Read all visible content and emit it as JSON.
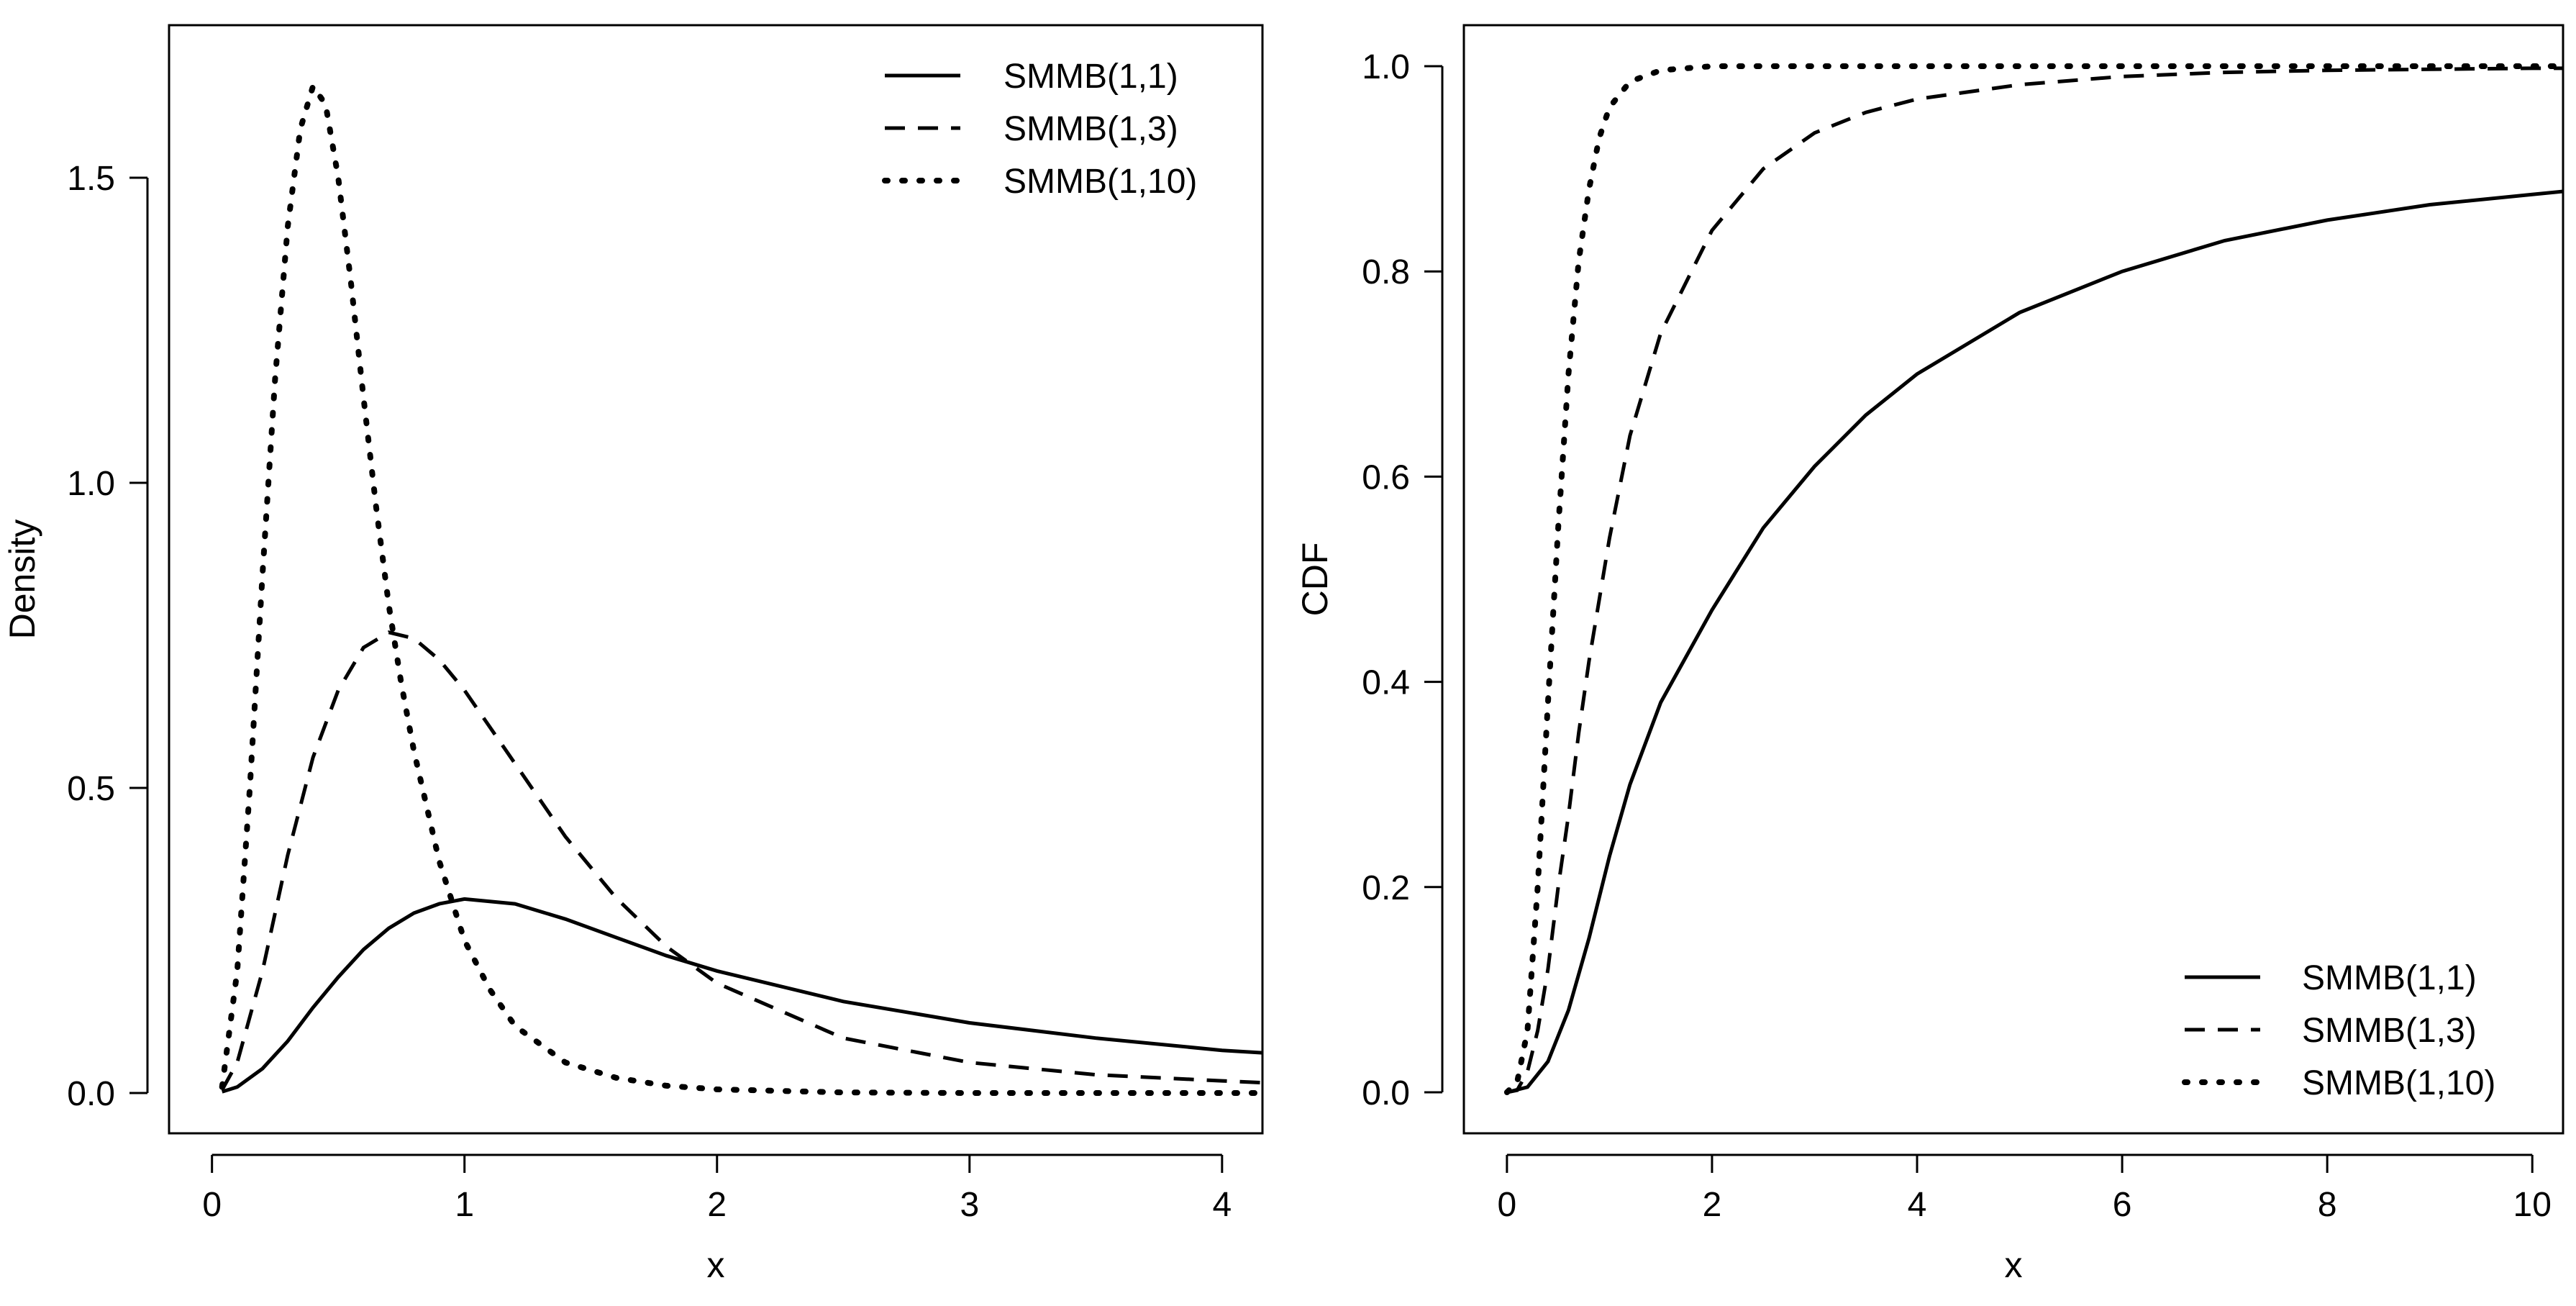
{
  "chart_data": [
    {
      "type": "line",
      "title": "",
      "xlabel": "x",
      "ylabel": "Density",
      "xlim": [
        -0.17,
        4.16
      ],
      "ylim": [
        -0.066,
        1.75
      ],
      "xticks": [
        0,
        1,
        2,
        3,
        4
      ],
      "xtick_labels": [
        "0",
        "1",
        "2",
        "3",
        "4"
      ],
      "yticks": [
        0,
        0.5,
        1,
        1.5
      ],
      "ytick_labels": [
        "0.0",
        "0.5",
        "1.0",
        "1.5"
      ],
      "legend_position": "top-right",
      "series": [
        {
          "name": "SMMB(1,1)",
          "line_style": "solid",
          "x": [
            0.04,
            0.1,
            0.2,
            0.3,
            0.4,
            0.5,
            0.6,
            0.7,
            0.8,
            0.9,
            1.0,
            1.2,
            1.4,
            1.6,
            1.8,
            2.0,
            2.5,
            3.0,
            3.5,
            4.0,
            4.16
          ],
          "y": [
            0.002,
            0.01,
            0.04,
            0.085,
            0.14,
            0.19,
            0.235,
            0.27,
            0.295,
            0.31,
            0.318,
            0.31,
            0.285,
            0.255,
            0.225,
            0.2,
            0.15,
            0.115,
            0.09,
            0.07,
            0.066
          ]
        },
        {
          "name": "SMMB(1,3)",
          "line_style": "dashed",
          "x": [
            0.04,
            0.1,
            0.2,
            0.3,
            0.4,
            0.5,
            0.6,
            0.7,
            0.8,
            0.9,
            1.0,
            1.2,
            1.4,
            1.6,
            1.8,
            2.0,
            2.5,
            3.0,
            3.5,
            4.0,
            4.16
          ],
          "y": [
            0.005,
            0.05,
            0.2,
            0.39,
            0.55,
            0.66,
            0.73,
            0.755,
            0.745,
            0.71,
            0.66,
            0.54,
            0.42,
            0.32,
            0.24,
            0.18,
            0.09,
            0.05,
            0.03,
            0.02,
            0.017
          ]
        },
        {
          "name": "SMMB(1,10)",
          "line_style": "dotted",
          "x": [
            0.04,
            0.1,
            0.15,
            0.2,
            0.25,
            0.3,
            0.35,
            0.4,
            0.45,
            0.5,
            0.55,
            0.6,
            0.65,
            0.7,
            0.75,
            0.8,
            0.9,
            1.0,
            1.1,
            1.2,
            1.4,
            1.6,
            1.8,
            2.0,
            2.5,
            3.0,
            4.0,
            4.16
          ],
          "y": [
            0.01,
            0.2,
            0.5,
            0.85,
            1.17,
            1.42,
            1.58,
            1.65,
            1.62,
            1.5,
            1.33,
            1.14,
            0.96,
            0.8,
            0.67,
            0.56,
            0.38,
            0.25,
            0.17,
            0.11,
            0.05,
            0.025,
            0.012,
            0.006,
            0.001,
            0.0,
            0.0,
            0.0
          ]
        }
      ]
    },
    {
      "type": "line",
      "title": "",
      "xlabel": "x",
      "ylabel": "CDF",
      "xlim": [
        -0.42,
        10.3
      ],
      "ylim": [
        -0.04,
        1.04
      ],
      "xticks": [
        0,
        2,
        4,
        6,
        8,
        10
      ],
      "xtick_labels": [
        "0",
        "2",
        "4",
        "6",
        "8",
        "10"
      ],
      "yticks": [
        0,
        0.2,
        0.4,
        0.6,
        0.8,
        1.0
      ],
      "ytick_labels": [
        "0.0",
        "0.2",
        "0.4",
        "0.6",
        "0.8",
        "1.0"
      ],
      "legend_position": "bottom-right",
      "series": [
        {
          "name": "SMMB(1,1)",
          "line_style": "solid",
          "x": [
            0.0,
            0.2,
            0.4,
            0.6,
            0.8,
            1.0,
            1.2,
            1.5,
            2.0,
            2.5,
            3.0,
            3.5,
            4.0,
            5.0,
            6.0,
            7.0,
            8.0,
            9.0,
            10.0,
            10.3
          ],
          "y": [
            0.0,
            0.005,
            0.03,
            0.08,
            0.15,
            0.23,
            0.3,
            0.38,
            0.47,
            0.55,
            0.61,
            0.66,
            0.7,
            0.76,
            0.8,
            0.83,
            0.85,
            0.865,
            0.875,
            0.878
          ]
        },
        {
          "name": "SMMB(1,3)",
          "line_style": "dashed",
          "x": [
            0.0,
            0.1,
            0.2,
            0.3,
            0.4,
            0.5,
            0.6,
            0.7,
            0.8,
            1.0,
            1.2,
            1.5,
            2.0,
            2.5,
            3.0,
            3.5,
            4.0,
            5.0,
            6.0,
            7.0,
            8.0,
            10.0,
            10.3
          ],
          "y": [
            0.0,
            0.002,
            0.02,
            0.06,
            0.12,
            0.2,
            0.27,
            0.35,
            0.42,
            0.54,
            0.64,
            0.74,
            0.84,
            0.9,
            0.935,
            0.955,
            0.968,
            0.982,
            0.99,
            0.994,
            0.996,
            0.998,
            0.998
          ]
        },
        {
          "name": "SMMB(1,10)",
          "line_style": "dotted",
          "x": [
            0.0,
            0.1,
            0.2,
            0.3,
            0.4,
            0.5,
            0.6,
            0.7,
            0.8,
            0.9,
            1.0,
            1.2,
            1.5,
            2.0,
            3.0,
            5.0,
            10.3
          ],
          "y": [
            0.0,
            0.01,
            0.06,
            0.2,
            0.38,
            0.55,
            0.7,
            0.81,
            0.88,
            0.93,
            0.96,
            0.985,
            0.996,
            1.0,
            1.0,
            1.0,
            1.0
          ]
        }
      ]
    }
  ]
}
